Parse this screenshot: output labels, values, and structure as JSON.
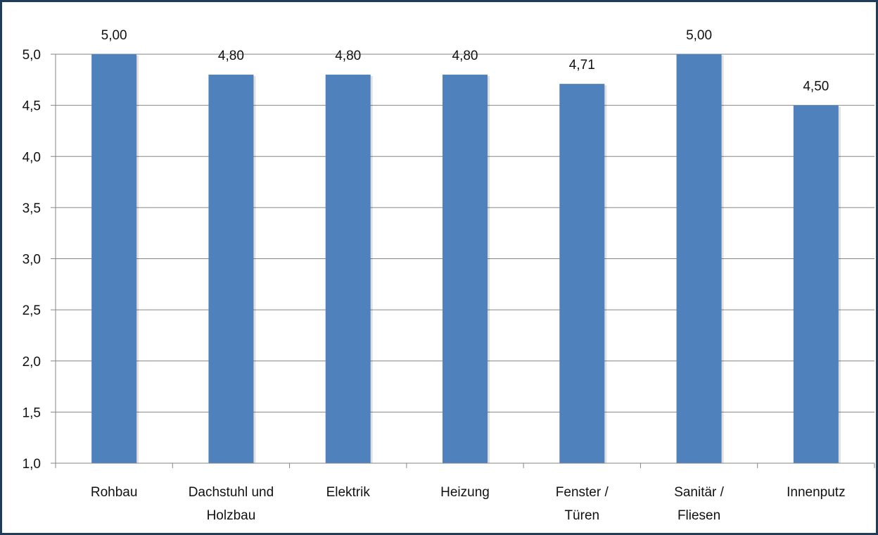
{
  "chart_data": {
    "type": "bar",
    "categories": [
      [
        "Rohbau"
      ],
      [
        "Dachstuhl und",
        "Holzbau"
      ],
      [
        "Elektrik"
      ],
      [
        "Heizung"
      ],
      [
        "Fenster /",
        "Türen"
      ],
      [
        "Sanitär /",
        "Fliesen"
      ],
      [
        "Innenputz"
      ]
    ],
    "values": [
      5.0,
      4.8,
      4.8,
      4.8,
      4.71,
      5.0,
      4.5
    ],
    "data_labels": [
      "5,00",
      "4,80",
      "4,80",
      "4,80",
      "4,71",
      "5,00",
      "4,50"
    ],
    "ylim": [
      1.0,
      5.0
    ],
    "yticks": [
      1.0,
      1.5,
      2.0,
      2.5,
      3.0,
      3.5,
      4.0,
      4.5,
      5.0
    ],
    "ytick_labels": [
      "1,0",
      "1,5",
      "2,0",
      "2,5",
      "3,0",
      "3,5",
      "4,0",
      "4,5",
      "5,0"
    ],
    "grid": true,
    "legend": "none",
    "bar_color": "#4f81bd",
    "grid_color": "#868686",
    "frame_color": "#1f3c5a"
  }
}
